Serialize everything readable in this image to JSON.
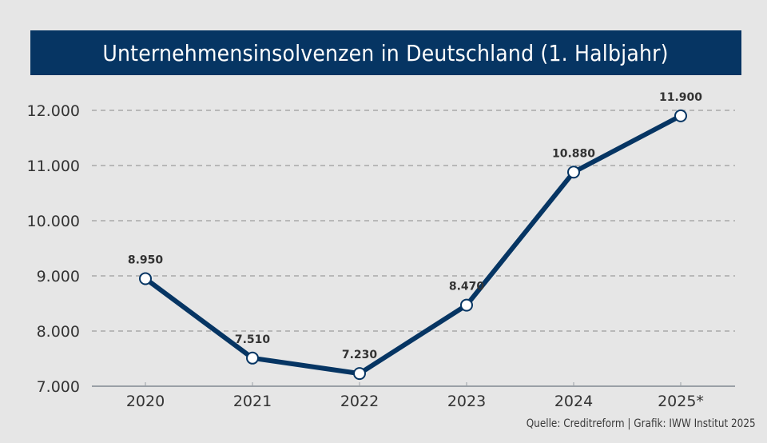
{
  "chart_data": {
    "type": "line",
    "title": "Unternehmensinsolvenzen in Deutschland (1. Halbjahr)",
    "xlabel": "",
    "ylabel": "",
    "categories": [
      "2020",
      "2021",
      "2022",
      "2023",
      "2024",
      "2025*"
    ],
    "series": [
      {
        "name": "Unternehmensinsolvenzen",
        "values": [
          8950,
          7510,
          7230,
          8470,
          10880,
          11900
        ],
        "labels": [
          "8.950",
          "7.510",
          "7.230",
          "8.470",
          "10.880",
          "11.900"
        ]
      }
    ],
    "ylim": [
      7000,
      12000
    ],
    "yticks": [
      7000,
      8000,
      9000,
      10000,
      11000,
      12000
    ],
    "ytick_labels": [
      "7.000",
      "8.000",
      "9.000",
      "10.000",
      "11.000",
      "12.000"
    ],
    "grid": "horizontal-dashed",
    "legend": "none",
    "colors": {
      "line": "#063563",
      "marker_fill": "#ffffff",
      "title_bg": "#063563",
      "background": "#e6e6e6",
      "grid": "#a8a8a8",
      "text": "#333333"
    }
  },
  "source": "Quelle: Creditreform | Grafik: IWW Institut 2025"
}
